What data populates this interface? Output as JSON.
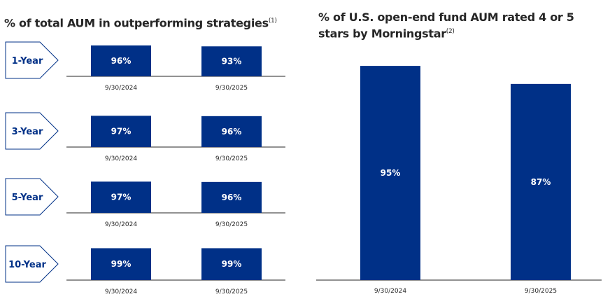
{
  "colors": {
    "bar": "#003087",
    "text": "#262626",
    "axis": "#262626"
  },
  "chart_data": [
    {
      "type": "bar",
      "title": "% of total AUM in outperforming strategies",
      "title_footnote": "(1)",
      "panels": [
        {
          "label": "1-Year",
          "categories": [
            "9/30/2024",
            "9/30/2025"
          ],
          "values": [
            96,
            93
          ],
          "data_labels": [
            "96%",
            "93%"
          ]
        },
        {
          "label": "3-Year",
          "categories": [
            "9/30/2024",
            "9/30/2025"
          ],
          "values": [
            97,
            96
          ],
          "data_labels": [
            "97%",
            "96%"
          ]
        },
        {
          "label": "5-Year",
          "categories": [
            "9/30/2024",
            "9/30/2025"
          ],
          "values": [
            97,
            96
          ],
          "data_labels": [
            "97%",
            "96%"
          ]
        },
        {
          "label": "10-Year",
          "categories": [
            "9/30/2024",
            "9/30/2025"
          ],
          "values": [
            99,
            99
          ],
          "data_labels": [
            "99%",
            "99%"
          ]
        }
      ],
      "ylim": [
        0,
        100
      ]
    },
    {
      "type": "bar",
      "title": "% of U.S. open-end fund AUM rated 4 or 5 stars by Morningstar",
      "title_footnote": "(2)",
      "categories": [
        "9/30/2024",
        "9/30/2025"
      ],
      "values": [
        95,
        87
      ],
      "data_labels": [
        "95%",
        "87%"
      ],
      "ylim": [
        0,
        100
      ]
    }
  ]
}
